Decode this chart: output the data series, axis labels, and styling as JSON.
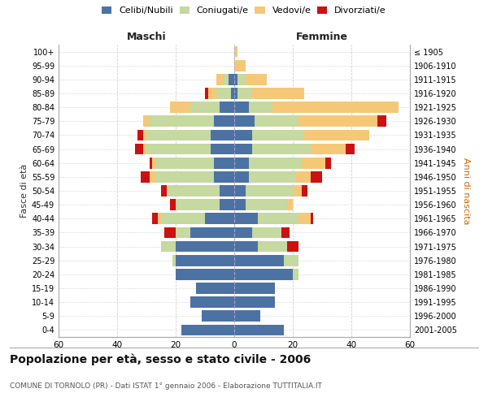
{
  "age_groups": [
    "0-4",
    "5-9",
    "10-14",
    "15-19",
    "20-24",
    "25-29",
    "30-34",
    "35-39",
    "40-44",
    "45-49",
    "50-54",
    "55-59",
    "60-64",
    "65-69",
    "70-74",
    "75-79",
    "80-84",
    "85-89",
    "90-94",
    "95-99",
    "100+"
  ],
  "birth_years": [
    "2001-2005",
    "1996-2000",
    "1991-1995",
    "1986-1990",
    "1981-1985",
    "1976-1980",
    "1971-1975",
    "1966-1970",
    "1961-1965",
    "1956-1960",
    "1951-1955",
    "1946-1950",
    "1941-1945",
    "1936-1940",
    "1931-1935",
    "1926-1930",
    "1921-1925",
    "1916-1920",
    "1911-1915",
    "1906-1910",
    "≤ 1905"
  ],
  "males": {
    "celibi": [
      18,
      11,
      15,
      13,
      20,
      20,
      20,
      15,
      10,
      5,
      5,
      7,
      7,
      8,
      8,
      7,
      5,
      1,
      2,
      0,
      0
    ],
    "coniugati": [
      0,
      0,
      0,
      0,
      0,
      1,
      5,
      5,
      15,
      15,
      18,
      20,
      20,
      22,
      22,
      22,
      10,
      5,
      2,
      0,
      0
    ],
    "vedovi": [
      0,
      0,
      0,
      0,
      0,
      0,
      0,
      0,
      1,
      0,
      0,
      2,
      1,
      1,
      1,
      2,
      7,
      3,
      2,
      0,
      0
    ],
    "divorziati": [
      0,
      0,
      0,
      0,
      0,
      0,
      0,
      4,
      2,
      2,
      2,
      3,
      1,
      3,
      2,
      0,
      0,
      1,
      0,
      0,
      0
    ]
  },
  "females": {
    "nubili": [
      17,
      9,
      14,
      14,
      20,
      17,
      8,
      6,
      8,
      4,
      4,
      5,
      5,
      6,
      6,
      7,
      5,
      1,
      1,
      0,
      0
    ],
    "coniugate": [
      0,
      0,
      0,
      0,
      2,
      5,
      10,
      10,
      14,
      14,
      16,
      16,
      18,
      20,
      18,
      15,
      8,
      5,
      3,
      0,
      0
    ],
    "vedove": [
      0,
      0,
      0,
      0,
      0,
      0,
      0,
      0,
      4,
      2,
      3,
      5,
      8,
      12,
      22,
      27,
      43,
      18,
      7,
      4,
      1
    ],
    "divorziate": [
      0,
      0,
      0,
      0,
      0,
      0,
      4,
      3,
      1,
      0,
      2,
      4,
      2,
      3,
      0,
      3,
      0,
      0,
      0,
      0,
      0
    ]
  },
  "colors": {
    "celibi_nubili": "#4c72a4",
    "coniugati_e": "#c5d9a0",
    "vedovi_e": "#f5c878",
    "divorziati_e": "#cc1111"
  },
  "title": "Popolazione per età, sesso e stato civile - 2006",
  "subtitle": "COMUNE DI TORNOLO (PR) - Dati ISTAT 1° gennaio 2006 - Elaborazione TUTTITALIA.IT",
  "xlabel_left": "Maschi",
  "xlabel_right": "Femmine",
  "ylabel_left": "Fasce di età",
  "ylabel_right": "Anni di nascita",
  "xlim": 60,
  "background_color": "#ffffff",
  "grid_color": "#cccccc"
}
